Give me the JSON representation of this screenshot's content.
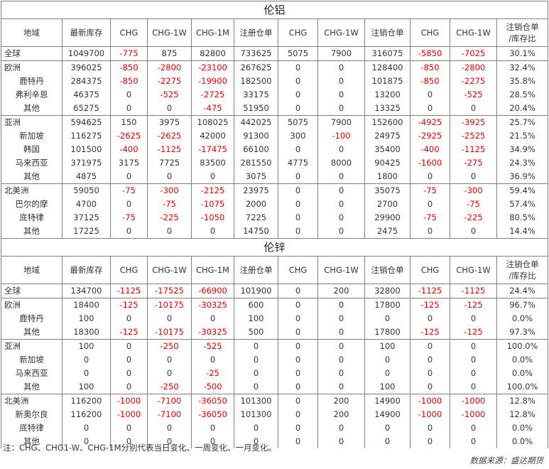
{
  "negative_color": "#e00000",
  "border_color": "#7f7f7f",
  "header": [
    "地域",
    "最新库存",
    "CHG",
    "CHG-1W",
    "CHG-1M",
    "注册仓单",
    "CHG",
    "CHG-1W",
    "注销仓单",
    "CHG",
    "CHG-1W",
    "注销仓单/库存比"
  ],
  "sections": [
    {
      "title": "伦铝",
      "rows": [
        {
          "level": 0,
          "group_start": true,
          "cells": [
            "全球",
            "1049700",
            "-775",
            "875",
            "82800",
            "733625",
            "5075",
            "7900",
            "316075",
            "-5850",
            "-7025",
            "30.1%"
          ]
        },
        {
          "level": 0,
          "group_start": true,
          "cells": [
            "欧洲",
            "396025",
            "-850",
            "-2800",
            "-23100",
            "267625",
            "0",
            "0",
            "128400",
            "-850",
            "-2800",
            "32.4%"
          ]
        },
        {
          "level": 1,
          "group_start": false,
          "cells": [
            "鹿特丹",
            "284375",
            "-850",
            "-2275",
            "-19900",
            "182500",
            "0",
            "0",
            "101875",
            "-850",
            "-2275",
            "35.8%"
          ]
        },
        {
          "level": 1,
          "group_start": false,
          "cells": [
            "弗利辛恩",
            "46375",
            "0",
            "-525",
            "-2725",
            "33175",
            "0",
            "0",
            "13200",
            "0",
            "-525",
            "28.5%"
          ]
        },
        {
          "level": 1,
          "group_start": false,
          "cells": [
            "其他",
            "65275",
            "0",
            "0",
            "-475",
            "51950",
            "0",
            "0",
            "13325",
            "0",
            "0",
            "20.4%"
          ]
        },
        {
          "level": 0,
          "group_start": true,
          "cells": [
            "亚洲",
            "594625",
            "150",
            "3975",
            "108025",
            "442025",
            "5075",
            "7900",
            "152600",
            "-4925",
            "-3925",
            "25.7%"
          ]
        },
        {
          "level": 1,
          "group_start": false,
          "cells": [
            "新加坡",
            "116275",
            "-2625",
            "-2625",
            "42000",
            "91300",
            "300",
            "-100",
            "24975",
            "-2925",
            "-2525",
            "21.5%"
          ]
        },
        {
          "level": 1,
          "group_start": false,
          "cells": [
            "韩国",
            "101500",
            "-400",
            "-1125",
            "-17475",
            "66100",
            "0",
            "0",
            "35400",
            "-400",
            "-1125",
            "34.9%"
          ]
        },
        {
          "level": 1,
          "group_start": false,
          "cells": [
            "马来西亚",
            "371975",
            "3175",
            "7725",
            "83500",
            "281550",
            "4775",
            "8000",
            "90425",
            "-1600",
            "-275",
            "24.3%"
          ]
        },
        {
          "level": 1,
          "group_start": false,
          "cells": [
            "其他",
            "4875",
            "0",
            "0",
            "0",
            "3075",
            "0",
            "0",
            "1800",
            "0",
            "0",
            "36.9%"
          ]
        },
        {
          "level": 0,
          "group_start": true,
          "cells": [
            "北美洲",
            "59050",
            "-75",
            "-300",
            "-2125",
            "23975",
            "0",
            "0",
            "35075",
            "-75",
            "-300",
            "59.4%"
          ]
        },
        {
          "level": 1,
          "group_start": false,
          "cells": [
            "巴尔的摩",
            "4700",
            "0",
            "-75",
            "-1075",
            "2000",
            "0",
            "0",
            "2700",
            "0",
            "-75",
            "57.4%"
          ]
        },
        {
          "level": 1,
          "group_start": false,
          "cells": [
            "底特律",
            "37125",
            "-75",
            "-225",
            "-1050",
            "7225",
            "0",
            "0",
            "29900",
            "-75",
            "-225",
            "80.5%"
          ]
        },
        {
          "level": 1,
          "group_start": false,
          "cells": [
            "其他",
            "17225",
            "0",
            "0",
            "0",
            "14750",
            "0",
            "0",
            "2475",
            "0",
            "0",
            "14.4%"
          ]
        }
      ]
    },
    {
      "title": "伦锌",
      "rows": [
        {
          "level": 0,
          "group_start": true,
          "cells": [
            "全球",
            "134700",
            "-1125",
            "-17525",
            "-66900",
            "101900",
            "0",
            "200",
            "32800",
            "-1125",
            "-1125",
            "24.4%"
          ]
        },
        {
          "level": 0,
          "group_start": true,
          "cells": [
            "欧洲",
            "18400",
            "-125",
            "-10175",
            "-30325",
            "600",
            "0",
            "0",
            "17800",
            "-125",
            "-125",
            "96.7%"
          ]
        },
        {
          "level": 1,
          "group_start": false,
          "cells": [
            "鹿特丹",
            "100",
            "0",
            "0",
            "0",
            "100",
            "0",
            "0",
            "0",
            "0",
            "0",
            "0.0%"
          ]
        },
        {
          "level": 1,
          "group_start": false,
          "cells": [
            "其他",
            "18300",
            "-125",
            "-10175",
            "-30325",
            "500",
            "0",
            "0",
            "17800",
            "-125",
            "-125",
            "97.3%"
          ]
        },
        {
          "level": 0,
          "group_start": true,
          "cells": [
            "亚洲",
            "100",
            "0",
            "-250",
            "-525",
            "0",
            "0",
            "0",
            "100",
            "0",
            "0",
            "100.0%"
          ]
        },
        {
          "level": 1,
          "group_start": false,
          "cells": [
            "新加坡",
            "0",
            "0",
            "0",
            "0",
            "0",
            "0",
            "0",
            "0",
            "0",
            "0",
            "0.0%"
          ]
        },
        {
          "level": 1,
          "group_start": false,
          "cells": [
            "马来西亚",
            "0",
            "0",
            "0",
            "-25",
            "0",
            "0",
            "0",
            "0",
            "0",
            "0",
            "0.0%"
          ]
        },
        {
          "level": 1,
          "group_start": false,
          "cells": [
            "其他",
            "100",
            "0",
            "-250",
            "-500",
            "0",
            "0",
            "0",
            "100",
            "0",
            "0",
            "100.0%"
          ]
        },
        {
          "level": 0,
          "group_start": true,
          "cells": [
            "北美洲",
            "116200",
            "-1000",
            "-7100",
            "-36050",
            "101300",
            "0",
            "200",
            "14900",
            "-1000",
            "-1000",
            "12.8%"
          ]
        },
        {
          "level": 1,
          "group_start": false,
          "cells": [
            "新奥尔良",
            "116200",
            "-1000",
            "-7100",
            "-36050",
            "101300",
            "0",
            "200",
            "14900",
            "-1000",
            "-1000",
            "12.8%"
          ]
        },
        {
          "level": 1,
          "group_start": false,
          "cells": [
            "底特律",
            "0",
            "0",
            "0",
            "0",
            "0",
            "0",
            "0",
            "0",
            "0",
            "0",
            "0.0%"
          ]
        },
        {
          "level": 1,
          "group_start": false,
          "cells": [
            "其他",
            "0",
            "0",
            "0",
            "0",
            "0",
            "0",
            "0",
            "0",
            "0",
            "0",
            "0.0%"
          ]
        }
      ]
    }
  ],
  "footnote": "注：CHG、CHG1-W、CHG-1M分别代表当日变化、一周变化、一月变化。",
  "source": "数据来源：盛达期货"
}
